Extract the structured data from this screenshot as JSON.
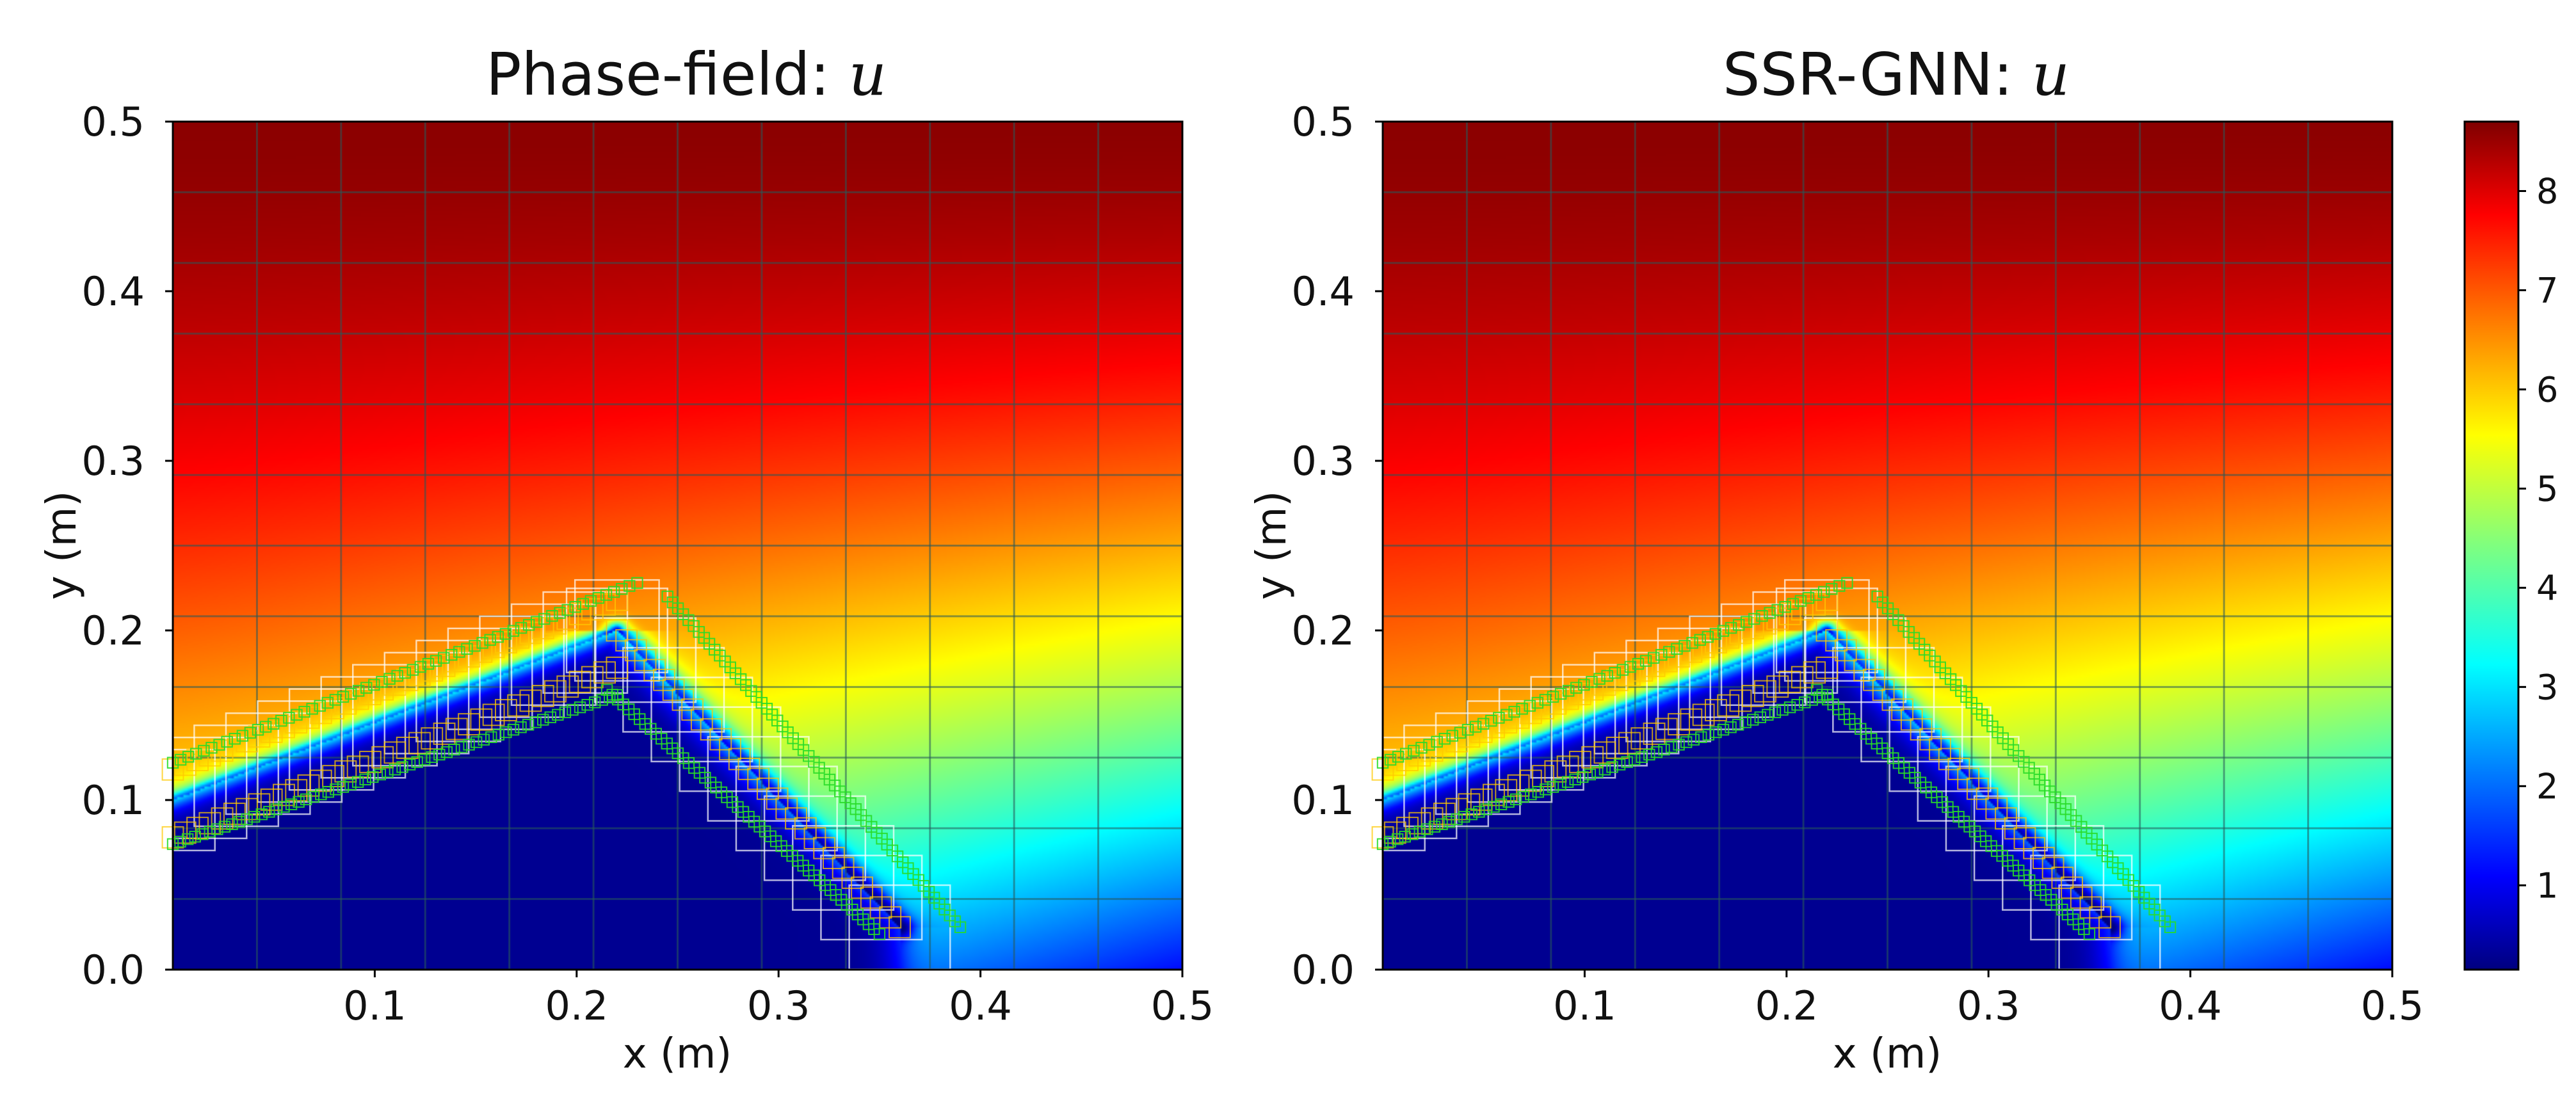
{
  "chart_data": [
    {
      "type": "heatmap",
      "title": "Phase-field: ",
      "title_var": "u",
      "xlabel": "x (m)",
      "ylabel": "y (m)",
      "xlim": [
        0.0,
        0.5
      ],
      "ylim": [
        0.0,
        0.5
      ],
      "xticks": [
        "0.1",
        "0.2",
        "0.3",
        "0.4",
        "0.5"
      ],
      "yticks": [
        "0.0",
        "0.1",
        "0.2",
        "0.3",
        "0.4",
        "0.5"
      ],
      "colormap": "jet",
      "field_range": [
        0.15,
        8.7
      ],
      "field_top": 8.6,
      "field_bottom_right": 1.3,
      "crack_region_value": 0.3,
      "crack_geometry": {
        "left": [
          0.0,
          0.1
        ],
        "apex": [
          0.22,
          0.2
        ],
        "tip": [
          0.36,
          0.025
        ]
      },
      "grid": "adaptive quadtree mesh overlay"
    },
    {
      "type": "heatmap",
      "title": "SSR-GNN: ",
      "title_var": "u",
      "xlabel": "x (m)",
      "ylabel": "y (m)",
      "xlim": [
        0.0,
        0.5
      ],
      "ylim": [
        0.0,
        0.5
      ],
      "xticks": [
        "0.1",
        "0.2",
        "0.3",
        "0.4",
        "0.5"
      ],
      "yticks": [
        "0.0",
        "0.1",
        "0.2",
        "0.3",
        "0.4",
        "0.5"
      ],
      "colormap": "jet",
      "field_range": [
        0.15,
        8.7
      ],
      "field_top": 8.6,
      "field_bottom_right": 1.3,
      "crack_region_value": 0.3,
      "crack_geometry": {
        "left": [
          0.0,
          0.1
        ],
        "apex": [
          0.22,
          0.2
        ],
        "tip": [
          0.36,
          0.025
        ]
      },
      "grid": "adaptive quadtree mesh overlay"
    }
  ],
  "colorbar": {
    "ticks": [
      "1",
      "2",
      "3",
      "4",
      "5",
      "6",
      "7",
      "8"
    ],
    "tick_values": [
      1,
      2,
      3,
      4,
      5,
      6,
      7,
      8
    ],
    "range": [
      0.15,
      8.7
    ]
  }
}
